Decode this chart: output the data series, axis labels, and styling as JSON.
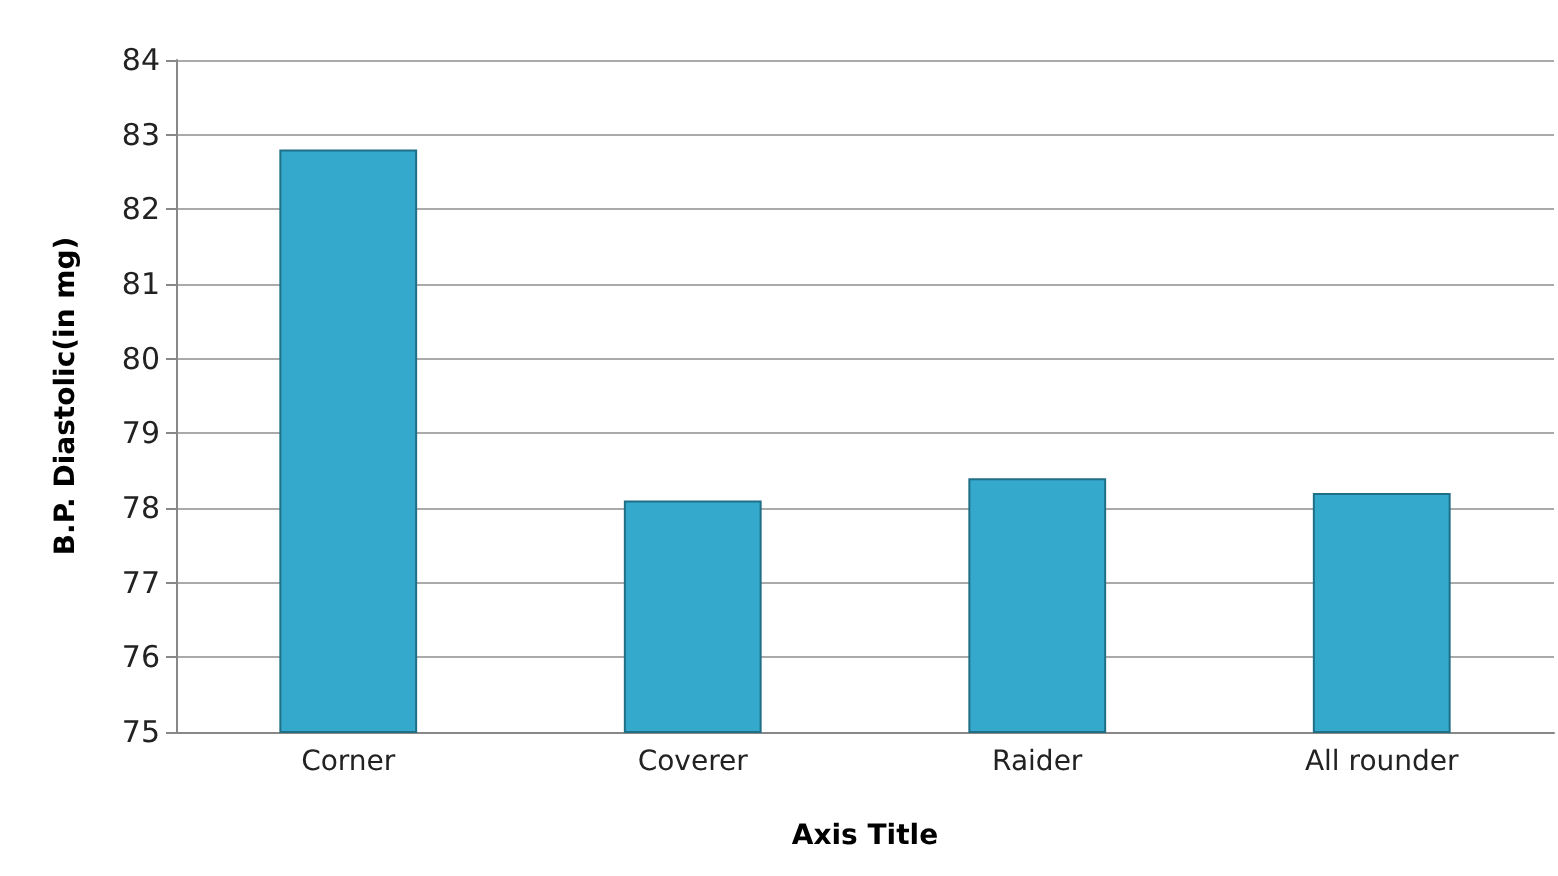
{
  "chart_data": {
    "type": "bar",
    "xlabel": "Axis Title",
    "ylabel": "B.P. Diastolic(in mg)",
    "categories": [
      "Corner",
      "Coverer",
      "Raider",
      "All rounder"
    ],
    "values": [
      82.8,
      78.1,
      78.4,
      78.2
    ],
    "color": "#35a9cc",
    "ylim": [
      75,
      84
    ],
    "yticks": [
      75,
      76,
      77,
      78,
      79,
      80,
      81,
      82,
      83,
      84
    ],
    "grid": "y"
  }
}
